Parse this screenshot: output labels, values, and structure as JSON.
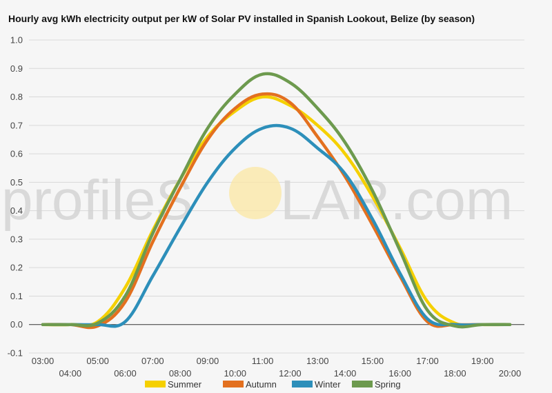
{
  "chart_data": {
    "type": "line",
    "title": "Hourly avg kWh electricity output per kW of Solar PV installed in Spanish Lookout, Belize (by season)",
    "xlabel": "",
    "ylabel": "",
    "ylim": [
      -0.1,
      1.0
    ],
    "yticks": [
      -0.1,
      0.0,
      0.1,
      0.2,
      0.3,
      0.4,
      0.5,
      0.6,
      0.7,
      0.8,
      0.9,
      1.0
    ],
    "ytick_labels": [
      "-0.1",
      "0.0",
      "0.1",
      "0.2",
      "0.3",
      "0.4",
      "0.5",
      "0.6",
      "0.7",
      "0.8",
      "0.9",
      "1.0"
    ],
    "x": [
      "03:00",
      "04:00",
      "05:00",
      "06:00",
      "07:00",
      "08:00",
      "09:00",
      "10:00",
      "11:00",
      "12:00",
      "13:00",
      "14:00",
      "15:00",
      "16:00",
      "17:00",
      "18:00",
      "19:00",
      "20:00"
    ],
    "grid": true,
    "legend_position": "bottom",
    "series": [
      {
        "name": "Summer",
        "color": "#f5d000",
        "values": [
          0.0,
          0.0,
          0.01,
          0.13,
          0.33,
          0.51,
          0.66,
          0.75,
          0.8,
          0.77,
          0.7,
          0.6,
          0.45,
          0.27,
          0.08,
          0.005,
          0.0,
          0.0
        ]
      },
      {
        "name": "Autumn",
        "color": "#e3701f",
        "values": [
          0.0,
          0.0,
          -0.005,
          0.08,
          0.29,
          0.48,
          0.65,
          0.76,
          0.81,
          0.78,
          0.66,
          0.52,
          0.35,
          0.17,
          0.01,
          0.0,
          0.0,
          0.0
        ]
      },
      {
        "name": "Winter",
        "color": "#2d8fba",
        "values": [
          0.0,
          0.0,
          0.0,
          0.01,
          0.17,
          0.34,
          0.5,
          0.62,
          0.69,
          0.69,
          0.62,
          0.53,
          0.37,
          0.18,
          0.02,
          0.0,
          0.0,
          0.0
        ]
      },
      {
        "name": "Spring",
        "color": "#6d9a4e",
        "values": [
          0.0,
          0.0,
          0.005,
          0.1,
          0.32,
          0.51,
          0.69,
          0.81,
          0.88,
          0.85,
          0.76,
          0.64,
          0.47,
          0.26,
          0.05,
          -0.005,
          0.0,
          0.0
        ]
      }
    ]
  },
  "watermark": {
    "text_left": "profileS",
    "text_right": "LAR.com",
    "sun_color": "#fbe7a3"
  }
}
